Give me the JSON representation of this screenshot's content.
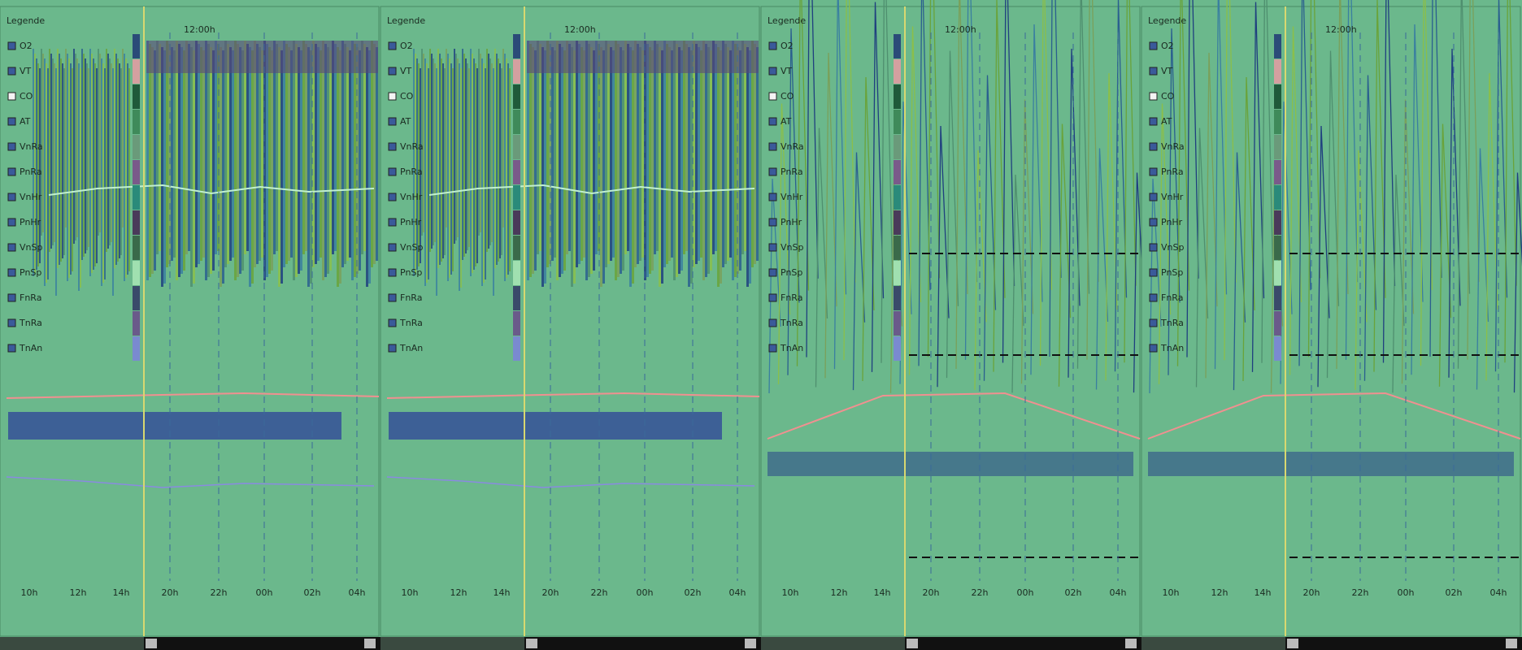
{
  "panels": [
    {
      "legend_title": "Legende",
      "time_label": "12:00h",
      "legend_items": [
        {
          "label": "O2",
          "checked": true,
          "color": "#2b4b78"
        },
        {
          "label": "VT",
          "checked": true,
          "color": "#d4a0a0"
        },
        {
          "label": "CO",
          "checked": false,
          "color": "#1f5a3a"
        },
        {
          "label": "AT",
          "checked": true,
          "color": "#3f8a5a"
        },
        {
          "label": "VnRa",
          "checked": true,
          "color": "#6a9a7a"
        },
        {
          "label": "PnRa",
          "checked": true,
          "color": "#7a5a8a"
        },
        {
          "label": "VnHr",
          "checked": true,
          "color": "#2a8a7a"
        },
        {
          "label": "PnHr",
          "checked": true,
          "color": "#4a3a5a"
        },
        {
          "label": "VnSp",
          "checked": true,
          "color": "#3a6a4a"
        },
        {
          "label": "PnSp",
          "checked": true,
          "color": "#a0e0b0"
        },
        {
          "label": "FnRa",
          "checked": true,
          "color": "#3a4a6a"
        },
        {
          "label": "TnRa",
          "checked": true,
          "color": "#6a5a8a"
        },
        {
          "label": "TnAn",
          "checked": true,
          "color": "#7a8ad0"
        }
      ],
      "x_labels_left": [
        "10h",
        "12h",
        "14h"
      ],
      "x_labels": [
        "20h",
        "22h",
        "00h",
        "02h",
        "04h"
      ]
    },
    {
      "legend_title": "Legende",
      "time_label": "12:00h",
      "legend_items": [
        {
          "label": "O2",
          "checked": true,
          "color": "#2b4b78"
        },
        {
          "label": "VT",
          "checked": true,
          "color": "#d4a0a0"
        },
        {
          "label": "CO",
          "checked": false,
          "color": "#1f5a3a"
        },
        {
          "label": "AT",
          "checked": true,
          "color": "#3f8a5a"
        },
        {
          "label": "VnRa",
          "checked": true,
          "color": "#6a9a7a"
        },
        {
          "label": "PnRa",
          "checked": true,
          "color": "#7a5a8a"
        },
        {
          "label": "VnHr",
          "checked": true,
          "color": "#2a8a7a"
        },
        {
          "label": "PnHr",
          "checked": true,
          "color": "#4a3a5a"
        },
        {
          "label": "VnSp",
          "checked": true,
          "color": "#3a6a4a"
        },
        {
          "label": "PnSp",
          "checked": true,
          "color": "#a0e0b0"
        },
        {
          "label": "FnRa",
          "checked": true,
          "color": "#3a4a6a"
        },
        {
          "label": "TnRa",
          "checked": true,
          "color": "#6a5a8a"
        },
        {
          "label": "TnAn",
          "checked": true,
          "color": "#7a8ad0"
        }
      ],
      "x_labels_left": [
        "10h",
        "12h",
        "14h"
      ],
      "x_labels": [
        "20h",
        "22h",
        "00h",
        "02h",
        "04h"
      ]
    },
    {
      "legend_title": "Legende",
      "time_label": "12:00h",
      "legend_items": [
        {
          "label": "O2",
          "checked": true,
          "color": "#2b4b78"
        },
        {
          "label": "VT",
          "checked": true,
          "color": "#d4a0a0"
        },
        {
          "label": "CO",
          "checked": false,
          "color": "#1f5a3a"
        },
        {
          "label": "AT",
          "checked": true,
          "color": "#3f8a5a"
        },
        {
          "label": "VnRa",
          "checked": true,
          "color": "#6a9a7a"
        },
        {
          "label": "PnRa",
          "checked": true,
          "color": "#7a5a8a"
        },
        {
          "label": "VnHr",
          "checked": true,
          "color": "#2a8a7a"
        },
        {
          "label": "PnHr",
          "checked": true,
          "color": "#4a3a5a"
        },
        {
          "label": "VnSp",
          "checked": true,
          "color": "#3a6a4a"
        },
        {
          "label": "PnSp",
          "checked": true,
          "color": "#a0e0b0"
        },
        {
          "label": "FnRa",
          "checked": true,
          "color": "#3a4a6a"
        },
        {
          "label": "TnRa",
          "checked": true,
          "color": "#6a5a8a"
        },
        {
          "label": "TnAn",
          "checked": true,
          "color": "#7a8ad0"
        }
      ],
      "x_labels_left": [
        "10h",
        "12h",
        "14h"
      ],
      "x_labels": [
        "20h",
        "22h",
        "00h",
        "02h",
        "04h"
      ]
    },
    {
      "legend_title": "Legende",
      "time_label": "12:00h",
      "legend_items": [
        {
          "label": "O2",
          "checked": true,
          "color": "#2b4b78"
        },
        {
          "label": "VT",
          "checked": true,
          "color": "#d4a0a0"
        },
        {
          "label": "CO",
          "checked": false,
          "color": "#1f5a3a"
        },
        {
          "label": "AT",
          "checked": true,
          "color": "#3f8a5a"
        },
        {
          "label": "VnRa",
          "checked": true,
          "color": "#6a9a7a"
        },
        {
          "label": "PnRa",
          "checked": true,
          "color": "#7a5a8a"
        },
        {
          "label": "VnHr",
          "checked": true,
          "color": "#2a8a7a"
        },
        {
          "label": "PnHr",
          "checked": true,
          "color": "#4a3a5a"
        },
        {
          "label": "VnSp",
          "checked": true,
          "color": "#3a6a4a"
        },
        {
          "label": "PnSp",
          "checked": true,
          "color": "#a0e0b0"
        },
        {
          "label": "FnRa",
          "checked": true,
          "color": "#3a4a6a"
        },
        {
          "label": "TnRa",
          "checked": true,
          "color": "#6a5a8a"
        },
        {
          "label": "TnAn",
          "checked": true,
          "color": "#7a8ad0"
        }
      ],
      "x_labels_left": [
        "10h",
        "12h",
        "14h"
      ],
      "x_labels": [
        "20h",
        "22h",
        "00h",
        "02h",
        "04h"
      ]
    }
  ]
}
